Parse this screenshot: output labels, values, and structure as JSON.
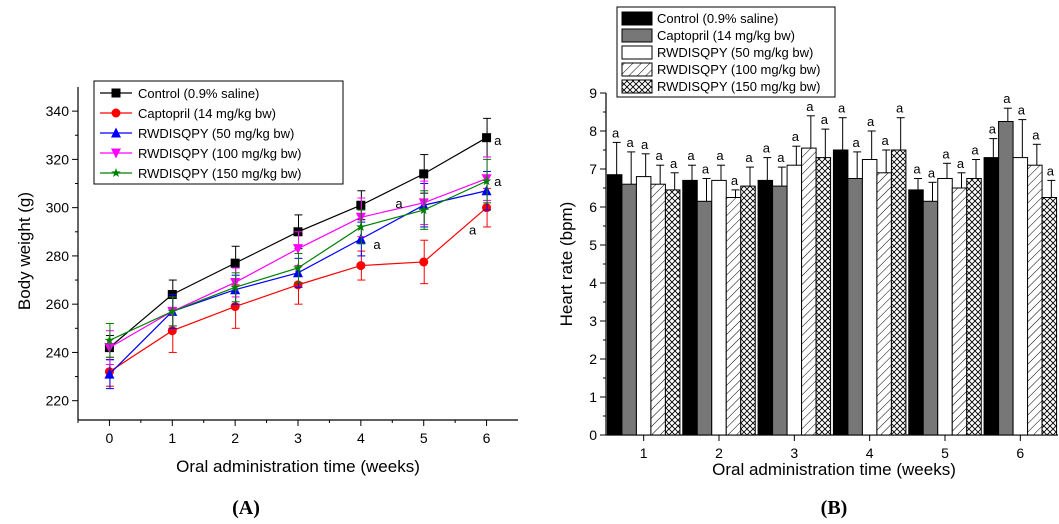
{
  "chart_data": [
    {
      "type": "line",
      "panel_label": "(A)",
      "xlabel": "Oral administration time (weeks)",
      "ylabel": "Body weight (g)",
      "x": [
        0,
        1,
        2,
        3,
        4,
        5,
        6
      ],
      "xticks": [
        "0",
        "1",
        "2",
        "3",
        "4",
        "5",
        "6"
      ],
      "xlim": [
        -0.5,
        6.5
      ],
      "ylim": [
        212,
        350
      ],
      "yticks": [
        "220",
        "240",
        "260",
        "280",
        "300",
        "320",
        "340"
      ],
      "legend": "top-left",
      "series": [
        {
          "name": "Control (0.9% saline)",
          "color": "#000000",
          "marker": "square",
          "values": [
            242,
            264,
            277,
            290,
            301,
            314,
            329
          ],
          "errors": [
            5,
            6,
            7,
            7,
            6,
            8,
            8
          ]
        },
        {
          "name": "Captopril (14 mg/kg bw)",
          "color": "#ff0000",
          "marker": "circle",
          "values": [
            232,
            249,
            259,
            268,
            276,
            277.5,
            300
          ],
          "errors": [
            6,
            9,
            9,
            8,
            6,
            9,
            8
          ]
        },
        {
          "name": "RWDISQPY (50 mg/kg bw)",
          "color": "#0000ff",
          "marker": "triangle-up",
          "values": [
            231,
            257,
            266,
            273,
            287,
            301,
            307
          ],
          "errors": [
            6,
            7,
            6,
            6,
            7,
            9,
            8
          ]
        },
        {
          "name": "RWDISQPY (100 mg/kg bw)",
          "color": "#ff00ff",
          "marker": "triangle-down",
          "values": [
            242,
            257,
            269,
            283,
            296,
            302,
            312
          ],
          "errors": [
            7,
            6,
            6,
            7,
            8,
            9,
            9
          ]
        },
        {
          "name": "RWDISQPY (150 mg/kg bw)",
          "color": "#008000",
          "marker": "star",
          "values": [
            245,
            257,
            267,
            275,
            292,
            299,
            311
          ],
          "errors": [
            7,
            6,
            6,
            6,
            7,
            8,
            9
          ]
        }
      ],
      "annotations": [
        {
          "text": "a",
          "x": 6.12,
          "y": 328
        },
        {
          "text": "a",
          "x": 6.12,
          "y": 311
        },
        {
          "text": "a",
          "x": 4.55,
          "y": 302
        },
        {
          "text": "a",
          "x": 4.2,
          "y": 285
        },
        {
          "text": "a",
          "x": 5.72,
          "y": 291
        }
      ]
    },
    {
      "type": "bar",
      "panel_label": "(B)",
      "xlabel": "Oral administration time (weeks)",
      "ylabel": "Heart rate (bpm)",
      "categories": [
        "1",
        "2",
        "3",
        "4",
        "5",
        "6"
      ],
      "ylim": [
        0,
        9
      ],
      "yticks": [
        "0",
        "1",
        "2",
        "3",
        "4",
        "5",
        "6",
        "7",
        "8",
        "9"
      ],
      "legend": "top-left",
      "bar_label": "a",
      "series": [
        {
          "name": "Control (0.9% saline)",
          "fill": "solid-black",
          "values": [
            6.85,
            6.7,
            6.7,
            7.5,
            6.45,
            7.3
          ],
          "errors": [
            0.85,
            0.4,
            0.6,
            0.85,
            0.3,
            0.5
          ]
        },
        {
          "name": "Captopril (14 mg/kg bw)",
          "fill": "solid-gray",
          "values": [
            6.6,
            6.15,
            6.55,
            6.75,
            6.15,
            8.25
          ],
          "errors": [
            0.85,
            0.6,
            0.5,
            0.7,
            0.5,
            0.35
          ]
        },
        {
          "name": "RWDISQPY (50 mg/kg bw)",
          "fill": "white",
          "values": [
            6.8,
            6.7,
            7.1,
            7.25,
            6.75,
            7.3
          ],
          "errors": [
            0.6,
            0.4,
            0.5,
            0.75,
            0.4,
            1.0
          ]
        },
        {
          "name": "RWDISQPY (100 mg/kg bw)",
          "fill": "hatch",
          "values": [
            6.6,
            6.25,
            7.55,
            6.9,
            6.5,
            7.1
          ],
          "errors": [
            0.5,
            0.2,
            0.85,
            0.6,
            0.4,
            0.55
          ]
        },
        {
          "name": "RWDISQPY (150 mg/kg bw)",
          "fill": "crosshatch",
          "values": [
            6.45,
            6.55,
            7.3,
            7.5,
            6.75,
            6.25
          ],
          "errors": [
            0.45,
            0.5,
            0.75,
            0.85,
            0.5,
            0.45
          ]
        }
      ]
    }
  ]
}
